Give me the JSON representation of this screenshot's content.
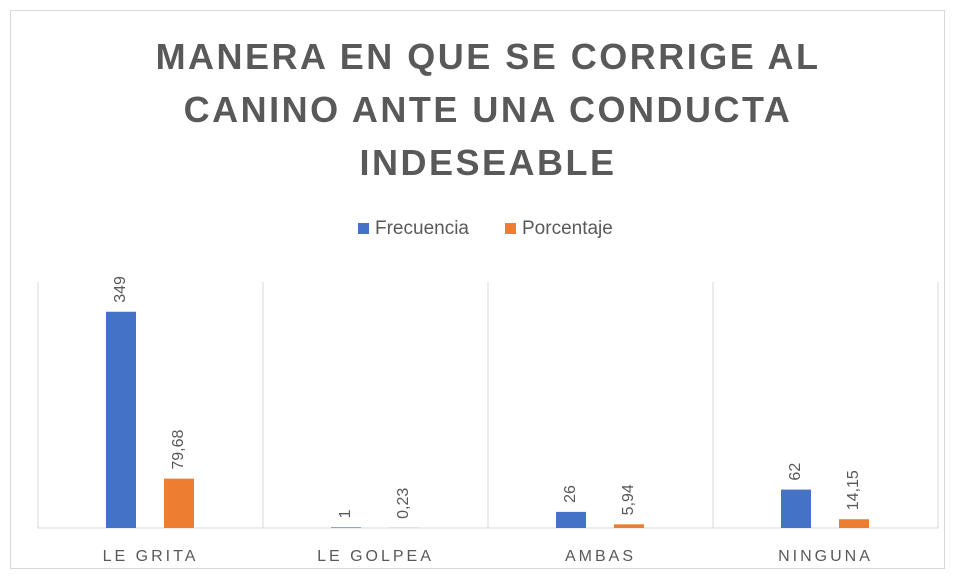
{
  "chart_data": {
    "type": "bar",
    "title": "MANERA EN QUE SE CORRIGE AL CANINO ANTE UNA CONDUCTA INDESEABLE",
    "categories": [
      "LE GRITA",
      "LE GOLPEA",
      "AMBAS",
      "NINGUNA"
    ],
    "series": [
      {
        "name": "Frecuencia",
        "color": "#4472c4",
        "values": [
          349,
          1,
          26,
          62
        ]
      },
      {
        "name": "Porcentaje",
        "color": "#ed7d31",
        "values": [
          79.68,
          0.23,
          5.94,
          14.15
        ],
        "value_labels": [
          "79,68",
          "0,23",
          "5,94",
          "14,15"
        ]
      }
    ],
    "ylim": [
      0,
      397
    ],
    "legend": "top"
  }
}
